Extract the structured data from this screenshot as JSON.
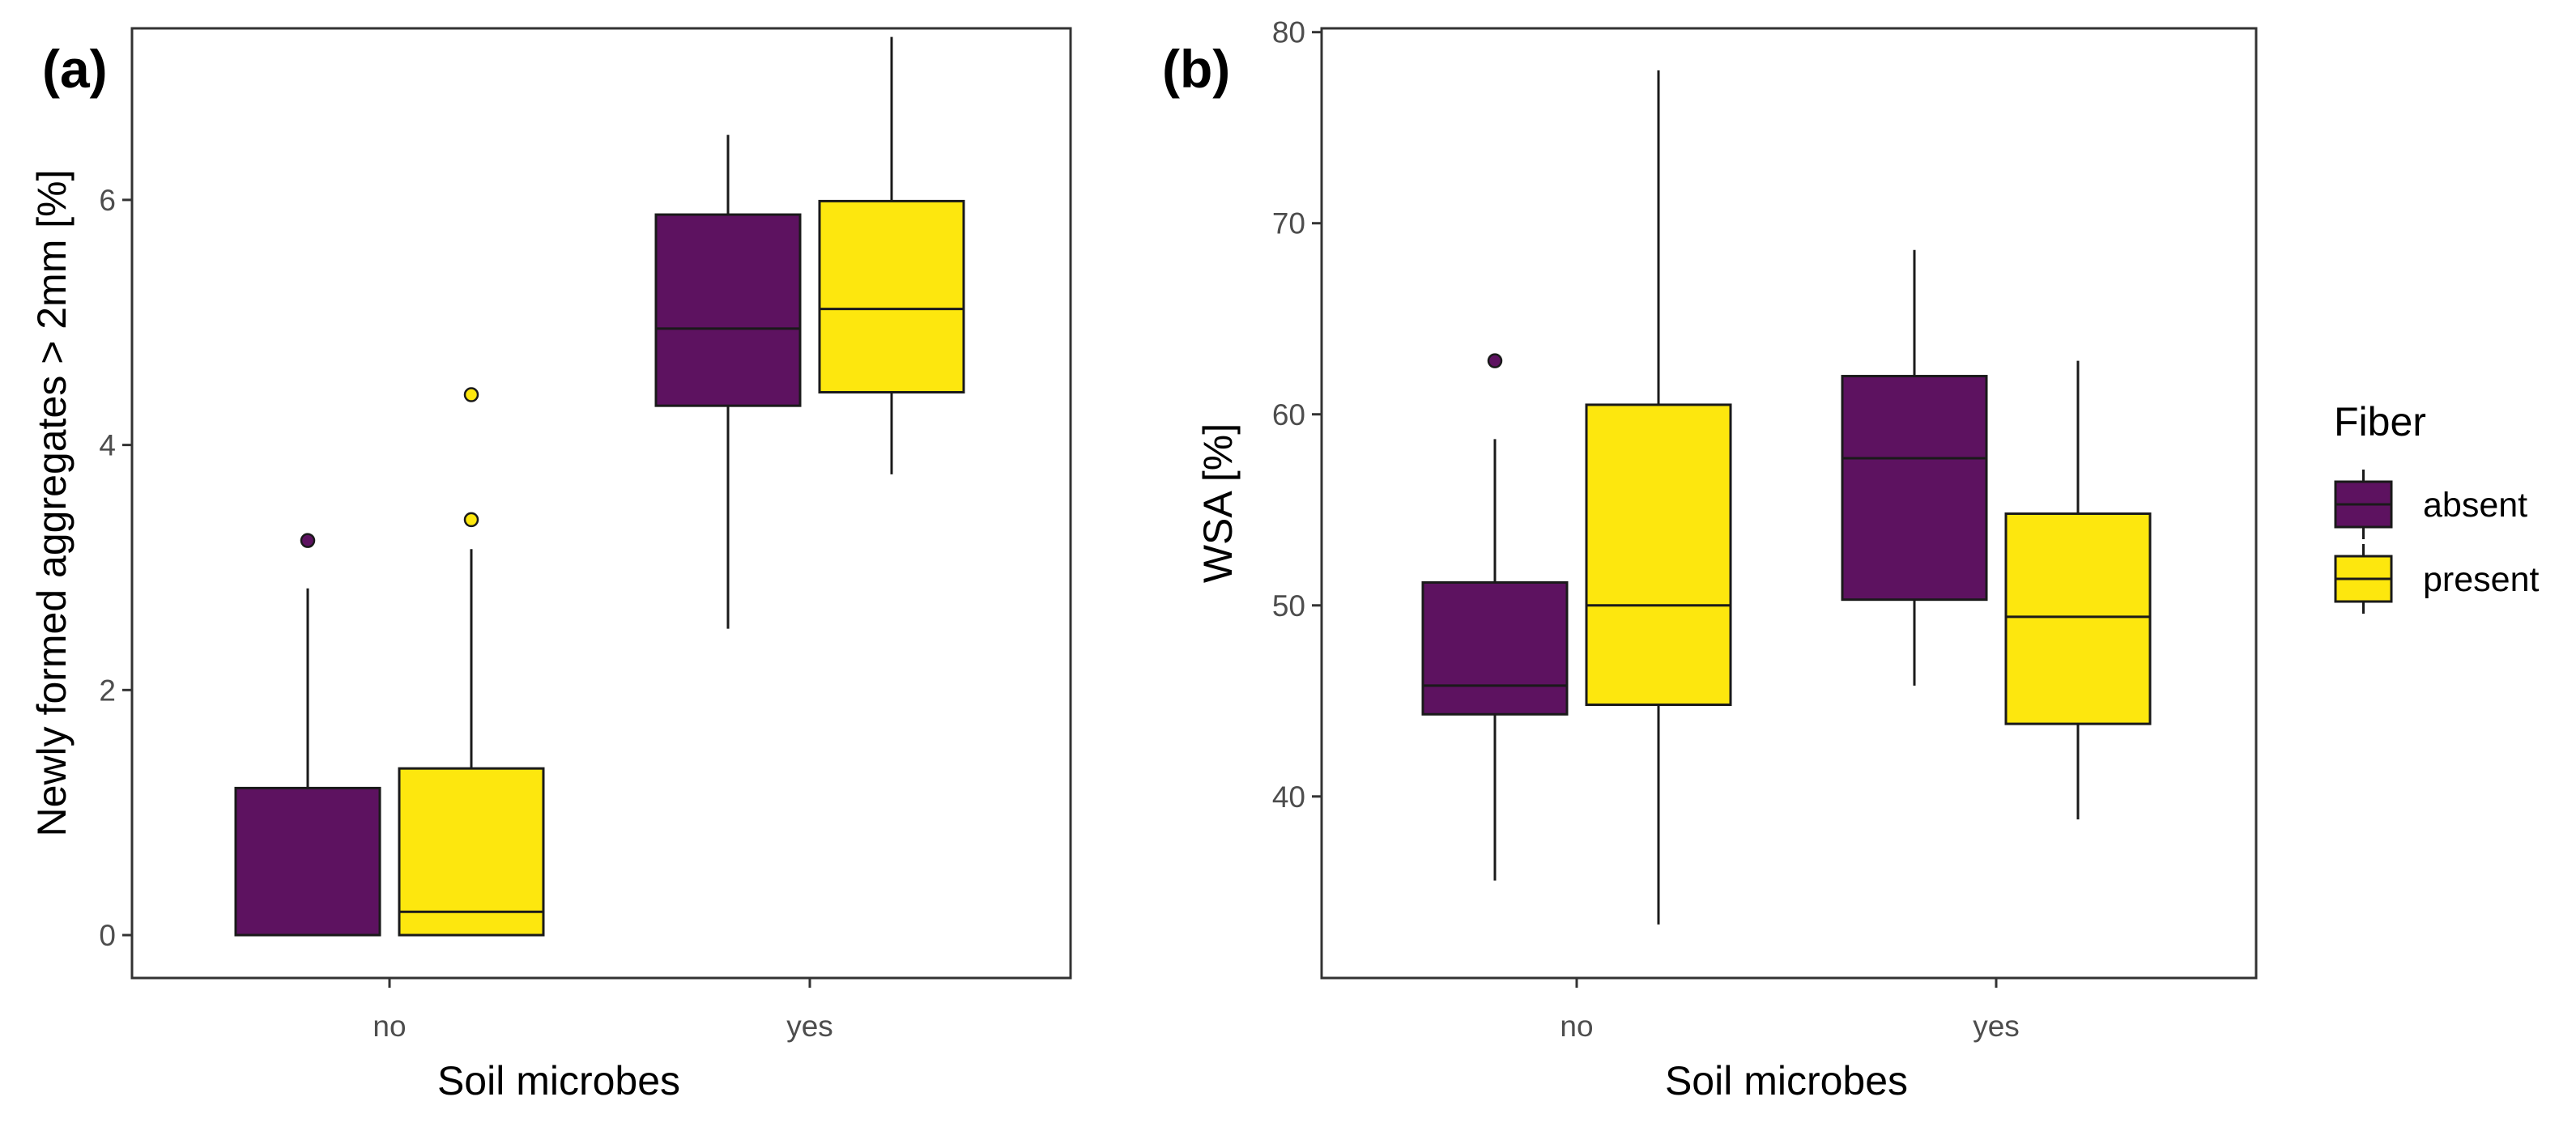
{
  "chart_data": [
    {
      "type": "boxplot",
      "panel_label": "(a)",
      "xlabel": "Soil microbes",
      "ylabel": "Newly formed aggregates > 2mm [%]",
      "categories": [
        "no",
        "yes"
      ],
      "ylim": [
        -0.35,
        7.4
      ],
      "yticks": [
        0,
        2,
        4,
        6
      ],
      "grid": false,
      "series": [
        {
          "name": "absent",
          "boxes": [
            {
              "category": "no",
              "lower_whisker": 0.0,
              "q1": 0.0,
              "median": 0.0,
              "q3": 1.2,
              "upper_whisker": 2.83,
              "outliers": [
                3.22
              ]
            },
            {
              "category": "yes",
              "lower_whisker": 2.5,
              "q1": 4.32,
              "median": 4.95,
              "q3": 5.88,
              "upper_whisker": 6.53,
              "outliers": []
            }
          ]
        },
        {
          "name": "present",
          "boxes": [
            {
              "category": "no",
              "lower_whisker": 0.0,
              "q1": 0.0,
              "median": 0.19,
              "q3": 1.36,
              "upper_whisker": 3.15,
              "outliers": [
                3.39,
                4.41
              ]
            },
            {
              "category": "yes",
              "lower_whisker": 3.76,
              "q1": 4.43,
              "median": 5.11,
              "q3": 5.99,
              "upper_whisker": 7.33,
              "outliers": []
            }
          ]
        }
      ]
    },
    {
      "type": "boxplot",
      "panel_label": "(b)",
      "xlabel": "Soil microbes",
      "ylabel": "WSA [%]",
      "categories": [
        "no",
        "yes"
      ],
      "ylim": [
        30.5,
        80.2
      ],
      "yticks": [
        40,
        50,
        60,
        70,
        80
      ],
      "grid": false,
      "series": [
        {
          "name": "absent",
          "boxes": [
            {
              "category": "no",
              "lower_whisker": 35.6,
              "q1": 44.3,
              "median": 45.8,
              "q3": 51.2,
              "upper_whisker": 58.7,
              "outliers": [
                62.8
              ]
            },
            {
              "category": "yes",
              "lower_whisker": 45.8,
              "q1": 50.3,
              "median": 57.7,
              "q3": 62.0,
              "upper_whisker": 68.6,
              "outliers": []
            }
          ]
        },
        {
          "name": "present",
          "boxes": [
            {
              "category": "no",
              "lower_whisker": 33.3,
              "q1": 44.8,
              "median": 50.0,
              "q3": 60.5,
              "upper_whisker": 78.0,
              "outliers": []
            },
            {
              "category": "yes",
              "lower_whisker": 38.8,
              "q1": 43.8,
              "median": 49.4,
              "q3": 54.8,
              "upper_whisker": 62.8,
              "outliers": []
            }
          ]
        }
      ]
    }
  ],
  "legend": {
    "title": "Fiber",
    "position": "right",
    "items": [
      {
        "label": "absent",
        "color": "#5d1260"
      },
      {
        "label": "present",
        "color": "#fde70e"
      }
    ]
  },
  "colors": {
    "absent": "#5d1260",
    "present": "#fde70e",
    "outline": "#1a1a1a",
    "axis_text": "#4d4d4d"
  }
}
